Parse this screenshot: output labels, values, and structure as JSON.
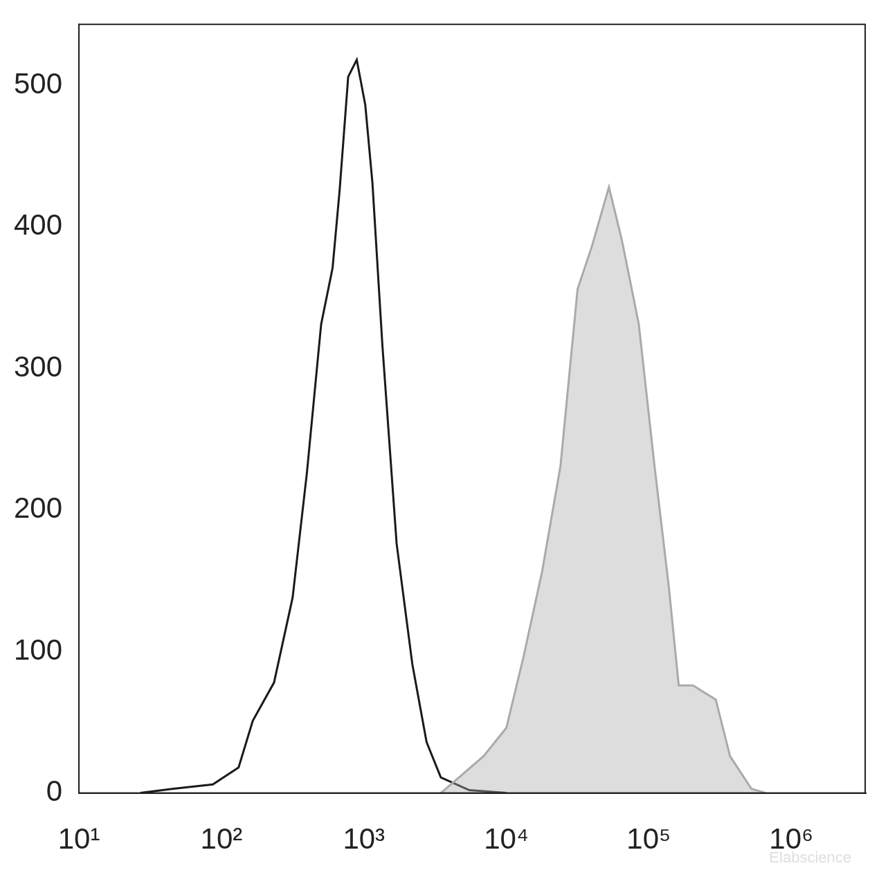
{
  "chart_data": {
    "type": "line",
    "log": "x",
    "grid": false,
    "xlim": [
      10,
      3300000
    ],
    "xticks": [
      {
        "value": 10,
        "label": "10¹"
      },
      {
        "value": 100,
        "label": "10²"
      },
      {
        "value": 1000,
        "label": "10³"
      },
      {
        "value": 10000,
        "label": "10⁴"
      },
      {
        "value": 100000,
        "label": "10⁵"
      },
      {
        "value": 1000000,
        "label": "10⁶"
      }
    ],
    "ylim": [
      0,
      543
    ],
    "yticks": [
      0,
      100,
      200,
      300,
      400,
      500
    ],
    "annotations": [
      "Elabscience"
    ],
    "series": [
      {
        "type": "area",
        "color": "#aaaaaa",
        "x": [
          3467,
          4898,
          6918,
          10000,
          13183,
          17783,
          23988,
          31623,
          39811,
          52481,
          64565,
          85114,
          109648,
          138038,
          162181,
          204174,
          295121,
          371535,
          524807,
          660693
        ],
        "values": [
          0,
          13,
          26,
          46,
          96,
          156,
          231,
          356,
          386,
          428,
          391,
          331,
          231,
          146,
          76,
          76,
          66,
          26,
          3,
          0
        ]
      },
      {
        "type": "line",
        "color": "#1a1a1a",
        "x": [
          27,
          46,
          87,
          132,
          166,
          234,
          316,
          398,
          501,
          603,
          676,
          776,
          891,
          1023,
          1148,
          1349,
          1698,
          2188,
          2754,
          3467,
          5495,
          10000
        ],
        "values": [
          0,
          3,
          6,
          18,
          51,
          78,
          138,
          226,
          331,
          371,
          426,
          506,
          518,
          486,
          431,
          316,
          176,
          91,
          36,
          11,
          2,
          0
        ]
      }
    ]
  }
}
